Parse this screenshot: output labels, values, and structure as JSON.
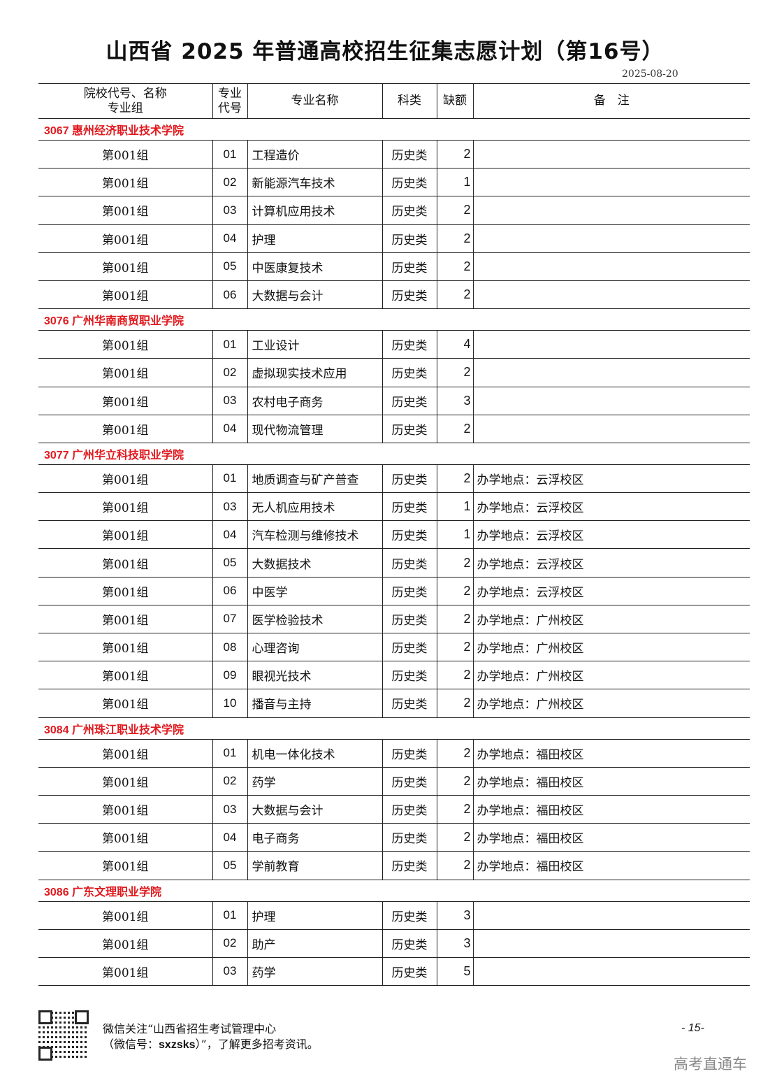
{
  "title": "山西省 2025 年普通高校招生征集志愿计划（第16号）",
  "date": "2025-08-20",
  "headers": {
    "school": "院校代号、名称",
    "group": "专业组",
    "code_l1": "专业",
    "code_l2": "代号",
    "name": "专业名称",
    "category": "科类",
    "quota": "缺额",
    "note": "备　注"
  },
  "accent": "#e0191e",
  "schools": [
    {
      "title": "3067  惠州经济职业技术学院",
      "rows": [
        [
          "第001组",
          "01",
          "工程造价",
          "历史类",
          "2",
          ""
        ],
        [
          "第001组",
          "02",
          "新能源汽车技术",
          "历史类",
          "1",
          ""
        ],
        [
          "第001组",
          "03",
          "计算机应用技术",
          "历史类",
          "2",
          ""
        ],
        [
          "第001组",
          "04",
          "护理",
          "历史类",
          "2",
          ""
        ],
        [
          "第001组",
          "05",
          "中医康复技术",
          "历史类",
          "2",
          ""
        ],
        [
          "第001组",
          "06",
          "大数据与会计",
          "历史类",
          "2",
          ""
        ]
      ]
    },
    {
      "title": "3076  广州华南商贸职业学院",
      "rows": [
        [
          "第001组",
          "01",
          "工业设计",
          "历史类",
          "4",
          ""
        ],
        [
          "第001组",
          "02",
          "虚拟现实技术应用",
          "历史类",
          "2",
          ""
        ],
        [
          "第001组",
          "03",
          "农村电子商务",
          "历史类",
          "3",
          ""
        ],
        [
          "第001组",
          "04",
          "现代物流管理",
          "历史类",
          "2",
          ""
        ]
      ]
    },
    {
      "title": "3077  广州华立科技职业学院",
      "rows": [
        [
          "第001组",
          "01",
          "地质调查与矿产普查",
          "历史类",
          "2",
          "办学地点：云浮校区"
        ],
        [
          "第001组",
          "03",
          "无人机应用技术",
          "历史类",
          "1",
          "办学地点：云浮校区"
        ],
        [
          "第001组",
          "04",
          "汽车检测与维修技术",
          "历史类",
          "1",
          "办学地点：云浮校区"
        ],
        [
          "第001组",
          "05",
          "大数据技术",
          "历史类",
          "2",
          "办学地点：云浮校区"
        ],
        [
          "第001组",
          "06",
          "中医学",
          "历史类",
          "2",
          "办学地点：云浮校区"
        ],
        [
          "第001组",
          "07",
          "医学检验技术",
          "历史类",
          "2",
          "办学地点：广州校区"
        ],
        [
          "第001组",
          "08",
          "心理咨询",
          "历史类",
          "2",
          "办学地点：广州校区"
        ],
        [
          "第001组",
          "09",
          "眼视光技术",
          "历史类",
          "2",
          "办学地点：广州校区"
        ],
        [
          "第001组",
          "10",
          "播音与主持",
          "历史类",
          "2",
          "办学地点：广州校区"
        ]
      ]
    },
    {
      "title": "3084  广州珠江职业技术学院",
      "rows": [
        [
          "第001组",
          "01",
          "机电一体化技术",
          "历史类",
          "2",
          "办学地点：福田校区"
        ],
        [
          "第001组",
          "02",
          "药学",
          "历史类",
          "2",
          "办学地点：福田校区"
        ],
        [
          "第001组",
          "03",
          "大数据与会计",
          "历史类",
          "2",
          "办学地点：福田校区"
        ],
        [
          "第001组",
          "04",
          "电子商务",
          "历史类",
          "2",
          "办学地点：福田校区"
        ],
        [
          "第001组",
          "05",
          "学前教育",
          "历史类",
          "2",
          "办学地点：福田校区"
        ]
      ]
    },
    {
      "title": "3086  广东文理职业学院",
      "rows": [
        [
          "第001组",
          "01",
          "护理",
          "历史类",
          "3",
          ""
        ],
        [
          "第001组",
          "02",
          "助产",
          "历史类",
          "3",
          ""
        ],
        [
          "第001组",
          "03",
          "药学",
          "历史类",
          "5",
          ""
        ]
      ]
    }
  ],
  "footer": {
    "line1": "微信关注“山西省招生考试管理中心",
    "line2_pre": "（微信号：",
    "wechat_id": "sxzsks",
    "line2_post": "）”，了解更多招考资讯。",
    "page": "- 15-",
    "watermark": "高考直通车"
  }
}
